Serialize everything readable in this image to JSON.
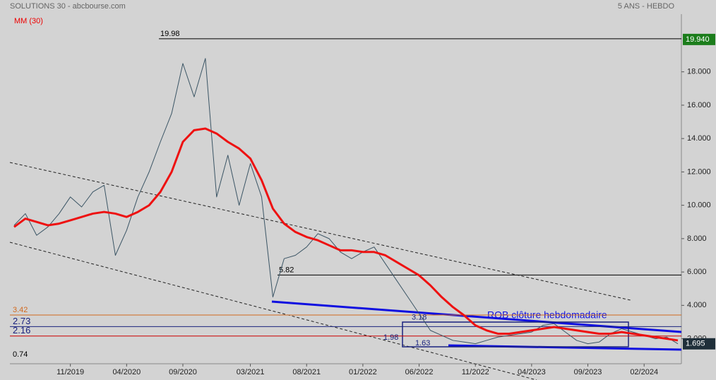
{
  "chart_data": {
    "type": "line",
    "title": "SOLUTIONS 30 - abcbourse.com",
    "subtitle": "5 ANS - HEBDO",
    "categories": [
      null,
      null,
      null,
      null,
      null,
      "11/2019",
      null,
      null,
      null,
      null,
      "04/2020",
      null,
      null,
      null,
      null,
      "09/2020",
      null,
      null,
      null,
      null,
      null,
      "03/2021",
      null,
      null,
      null,
      null,
      "08/2021",
      null,
      null,
      null,
      null,
      "01/2022",
      null,
      null,
      null,
      null,
      "06/2022",
      null,
      null,
      null,
      null,
      "11/2022",
      null,
      null,
      null,
      null,
      "04/2023",
      null,
      null,
      null,
      null,
      "09/2023",
      null,
      null,
      null,
      null,
      "02/2024",
      null,
      null,
      null
    ],
    "series": [
      {
        "name": "SOLUTIONS 30",
        "color": "#3b5565",
        "values": [
          8.8,
          9.5,
          8.2,
          8.7,
          9.5,
          10.5,
          9.9,
          10.8,
          11.2,
          7.0,
          8.5,
          10.5,
          12.0,
          13.8,
          15.5,
          18.5,
          16.5,
          18.8,
          10.5,
          13.0,
          10.0,
          12.5,
          10.5,
          4.5,
          6.8,
          7.0,
          7.5,
          8.3,
          8.0,
          7.2,
          6.8,
          7.2,
          7.5,
          6.5,
          5.5,
          4.5,
          3.5,
          2.5,
          2.2,
          1.9,
          1.8,
          1.7,
          1.9,
          2.1,
          2.2,
          2.3,
          2.4,
          2.8,
          2.9,
          2.4,
          1.9,
          1.7,
          1.8,
          2.3,
          2.6,
          2.4,
          2.2,
          2.0,
          2.1,
          1.7
        ]
      },
      {
        "name": "MM (30)",
        "color": "#ee1111",
        "values": [
          8.7,
          9.2,
          9.0,
          8.8,
          8.9,
          9.1,
          9.3,
          9.5,
          9.6,
          9.5,
          9.3,
          9.6,
          10.0,
          10.8,
          12.0,
          13.8,
          14.5,
          14.6,
          14.3,
          13.8,
          13.4,
          12.8,
          11.5,
          9.8,
          8.9,
          8.4,
          8.1,
          7.9,
          7.6,
          7.3,
          7.3,
          7.2,
          7.2,
          7.0,
          6.6,
          6.2,
          5.8,
          5.2,
          4.5,
          3.9,
          3.4,
          2.8,
          2.5,
          2.3,
          2.3,
          2.4,
          2.5,
          2.6,
          2.7,
          2.6,
          2.5,
          2.4,
          2.3,
          2.3,
          2.4,
          2.3,
          2.2,
          2.1,
          2.0,
          1.9
        ]
      }
    ],
    "ylim": [
      0.5,
      20.4
    ],
    "yticks": [
      {
        "value": 2,
        "label": "2.000"
      },
      {
        "value": 4,
        "label": "4.000"
      },
      {
        "value": 6,
        "label": "6.000"
      },
      {
        "value": 8,
        "label": "8.000"
      },
      {
        "value": 10,
        "label": "10.000"
      },
      {
        "value": 12,
        "label": "12.000"
      },
      {
        "value": 14,
        "label": "14.000"
      },
      {
        "value": 16,
        "label": "16.000"
      },
      {
        "value": 18,
        "label": "18.000"
      }
    ],
    "levels": [
      {
        "value": 19.98,
        "color": "#000000"
      },
      {
        "value": 5.82,
        "color": "#000000"
      },
      {
        "value": 3.42,
        "color": "#d2691e"
      },
      {
        "value": 2.73,
        "color": "#1a237e"
      },
      {
        "value": 2.16,
        "color": "#cc0000"
      },
      {
        "value": 0.74,
        "color": "#000000"
      }
    ],
    "box_labels": [
      3.18,
      1.98,
      1.63
    ],
    "note": "ROB clôture hebdomadaire",
    "top_price": {
      "value": 19.94,
      "label": "19.940"
    },
    "last_price": 1.695
  }
}
